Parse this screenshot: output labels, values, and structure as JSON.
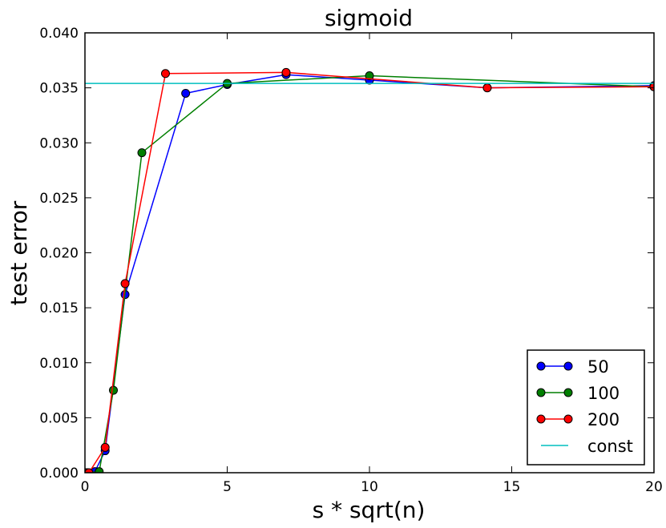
{
  "chart_data": {
    "type": "line",
    "title": "sigmoid",
    "xlabel": "s * sqrt(n)",
    "ylabel": "test error",
    "xlim": [
      0,
      20
    ],
    "ylim": [
      0,
      0.04
    ],
    "xticks": [
      0,
      5,
      10,
      15,
      20
    ],
    "xtick_labels": [
      "0",
      "5",
      "10",
      "15",
      "20"
    ],
    "yticks": [
      0,
      0.005,
      0.01,
      0.015,
      0.02,
      0.025,
      0.03,
      0.035,
      0.04
    ],
    "ytick_labels": [
      "0.000",
      "0.005",
      "0.010",
      "0.015",
      "0.020",
      "0.025",
      "0.030",
      "0.035",
      "0.040"
    ],
    "grid": false,
    "legend_position": "bottom-right",
    "series": [
      {
        "name": "50",
        "color": "#0000ff",
        "marker": "circle",
        "x": [
          0,
          0.07,
          0.35,
          0.71,
          1.41,
          3.54,
          5.0,
          7.07,
          10.0,
          14.14,
          20.0
        ],
        "y": [
          0,
          0,
          0.0001,
          0.002,
          0.0162,
          0.0345,
          0.0353,
          0.0362,
          0.0357,
          0.035,
          0.0352
        ]
      },
      {
        "name": "100",
        "color": "#007f00",
        "marker": "circle",
        "x": [
          0,
          0.1,
          0.5,
          1.0,
          2.0,
          5.0,
          10.0,
          20.0
        ],
        "y": [
          0,
          0,
          0.0001,
          0.0075,
          0.0291,
          0.0354,
          0.0361,
          0.0351
        ]
      },
      {
        "name": "200",
        "color": "#ff0000",
        "marker": "circle",
        "x": [
          0,
          0.14,
          0.71,
          1.41,
          2.83,
          7.07,
          14.14,
          20.0
        ],
        "y": [
          0,
          0,
          0.0023,
          0.0172,
          0.0363,
          0.0364,
          0.035,
          0.0351
        ]
      },
      {
        "name": "const",
        "color": "#00bfbf",
        "marker": "none",
        "x": [
          0,
          20
        ],
        "y": [
          0.0354,
          0.0354
        ]
      }
    ]
  }
}
